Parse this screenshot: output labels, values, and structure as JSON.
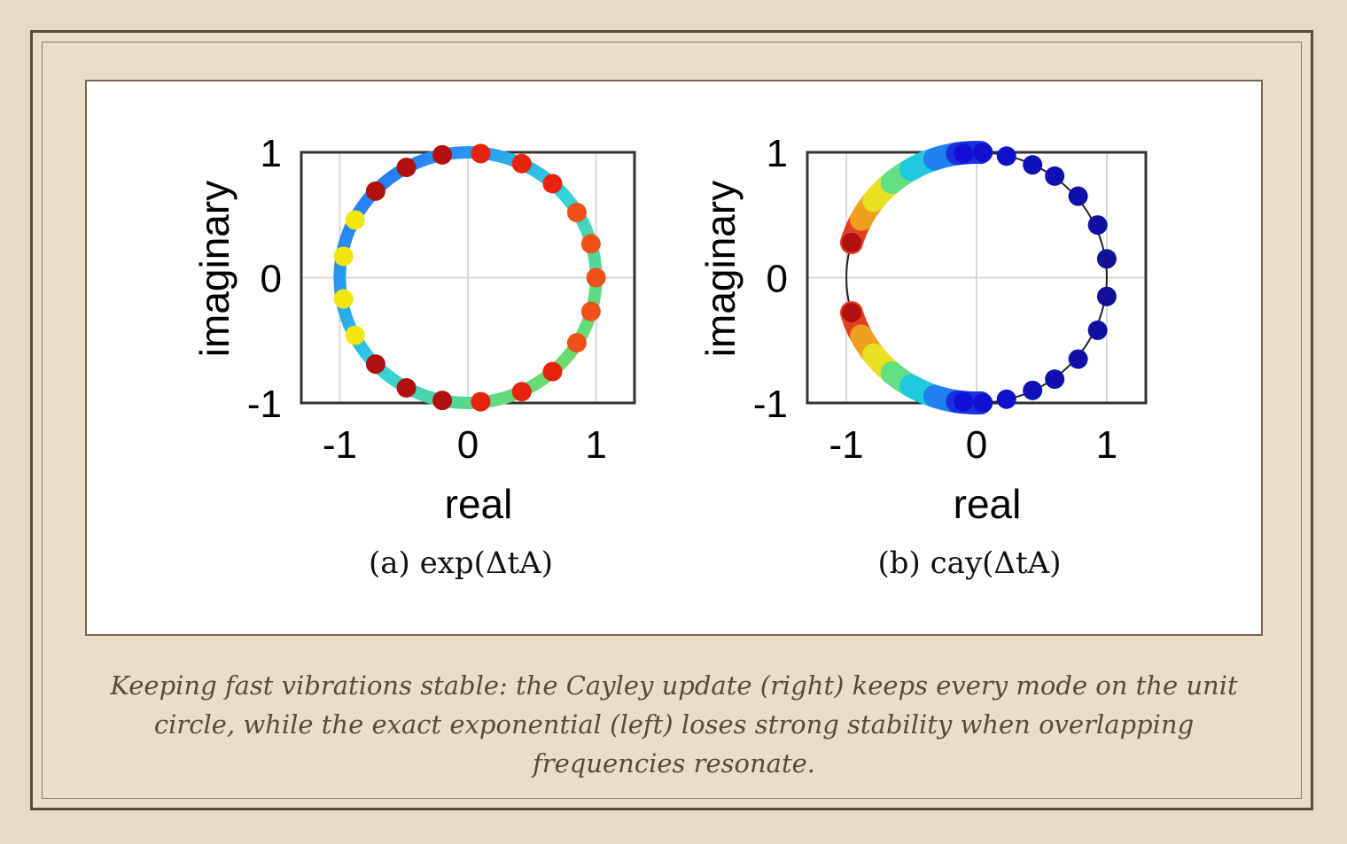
{
  "caption": "Keeping fast vibrations stable: the Cayley update (right) keeps every mode on the unit circle, while the exact exponential (left) loses strong stability when overlapping frequencies resonate.",
  "chart_data": [
    {
      "type": "scatter",
      "subcaption": "(a) exp(ΔtA)",
      "xlabel": "real",
      "ylabel": "imaginary",
      "xlim": [
        -1.3,
        1.3
      ],
      "ylim": [
        -1.0,
        1.0
      ],
      "xticks": [
        "-1",
        "0",
        "1"
      ],
      "yticks": [
        "1",
        "0",
        "-1"
      ],
      "grid": true,
      "points": [
        {
          "x": 0.1,
          "y": 0.99,
          "color": "#e8220c"
        },
        {
          "x": 0.42,
          "y": 0.91,
          "color": "#e8220c"
        },
        {
          "x": 0.66,
          "y": 0.75,
          "color": "#e8220c"
        },
        {
          "x": 0.85,
          "y": 0.52,
          "color": "#f0501a"
        },
        {
          "x": 0.96,
          "y": 0.27,
          "color": "#f0501a"
        },
        {
          "x": 1.0,
          "y": 0.0,
          "color": "#f0501a"
        },
        {
          "x": 0.96,
          "y": -0.27,
          "color": "#f0501a"
        },
        {
          "x": 0.85,
          "y": -0.52,
          "color": "#f0501a"
        },
        {
          "x": 0.66,
          "y": -0.75,
          "color": "#e8220c"
        },
        {
          "x": 0.42,
          "y": -0.91,
          "color": "#e8220c"
        },
        {
          "x": 0.1,
          "y": -0.99,
          "color": "#e8220c"
        },
        {
          "x": -0.2,
          "y": 0.98,
          "color": "#b01010"
        },
        {
          "x": -0.48,
          "y": 0.88,
          "color": "#b01010"
        },
        {
          "x": -0.72,
          "y": 0.69,
          "color": "#b01010"
        },
        {
          "x": -0.88,
          "y": 0.46,
          "color": "#f2e60e"
        },
        {
          "x": -0.97,
          "y": 0.17,
          "color": "#f2e60e"
        },
        {
          "x": -0.97,
          "y": -0.17,
          "color": "#f2e60e"
        },
        {
          "x": -0.88,
          "y": -0.46,
          "color": "#f2e60e"
        },
        {
          "x": -0.72,
          "y": -0.69,
          "color": "#b01010"
        },
        {
          "x": -0.48,
          "y": -0.88,
          "color": "#b01010"
        },
        {
          "x": -0.2,
          "y": -0.98,
          "color": "#b01010"
        }
      ]
    },
    {
      "type": "scatter",
      "subcaption": "(b) cay(ΔtA)",
      "xlabel": "real",
      "ylabel": "imaginary",
      "xlim": [
        -1.3,
        1.3
      ],
      "ylim": [
        -1.0,
        1.0
      ],
      "xticks": [
        "-1",
        "0",
        "1"
      ],
      "yticks": [
        "1",
        "0",
        "-1"
      ],
      "grid": true,
      "points": [
        {
          "x": -0.1,
          "y": 0.99,
          "color": "#1010d8"
        },
        {
          "x": 0.05,
          "y": 1.0,
          "color": "#1010d0"
        },
        {
          "x": 0.23,
          "y": 0.97,
          "color": "#1010c8"
        },
        {
          "x": 0.43,
          "y": 0.9,
          "color": "#1010b8"
        },
        {
          "x": 0.6,
          "y": 0.81,
          "color": "#1010b0"
        },
        {
          "x": 0.78,
          "y": 0.65,
          "color": "#1010a8"
        },
        {
          "x": 0.93,
          "y": 0.42,
          "color": "#1010a0"
        },
        {
          "x": 1.0,
          "y": 0.15,
          "color": "#101098"
        },
        {
          "x": 1.0,
          "y": -0.15,
          "color": "#101098"
        },
        {
          "x": 0.93,
          "y": -0.42,
          "color": "#1010a0"
        },
        {
          "x": 0.78,
          "y": -0.65,
          "color": "#1010a8"
        },
        {
          "x": 0.6,
          "y": -0.81,
          "color": "#1010b0"
        },
        {
          "x": 0.43,
          "y": -0.9,
          "color": "#1010b8"
        },
        {
          "x": 0.23,
          "y": -0.97,
          "color": "#1010c8"
        },
        {
          "x": 0.05,
          "y": -1.0,
          "color": "#1010d0"
        },
        {
          "x": -0.1,
          "y": -0.99,
          "color": "#1010d8"
        },
        {
          "x": -0.96,
          "y": 0.28,
          "color": "#b01010"
        },
        {
          "x": -0.96,
          "y": -0.28,
          "color": "#b01010"
        }
      ]
    }
  ]
}
